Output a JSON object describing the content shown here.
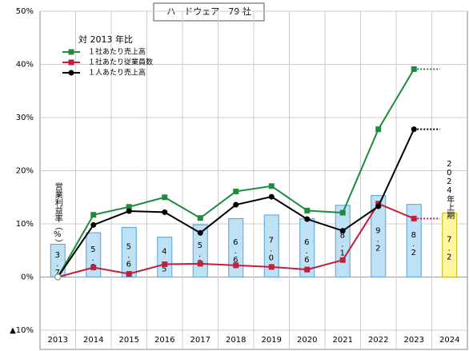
{
  "chart_data": {
    "type": "bar_line",
    "title": "ハードウェア　79 社",
    "categories": [
      "2013",
      "2014",
      "2015",
      "2016",
      "2017",
      "2018",
      "2019",
      "2020",
      "2021",
      "2022",
      "2023",
      "2024"
    ],
    "bar": {
      "name": "営業利益率（%）",
      "axis": "y2",
      "values": [
        3.7,
        5.0,
        5.6,
        4.5,
        5.9,
        6.6,
        7.0,
        6.6,
        8.1,
        9.2,
        8.2,
        7.2
      ],
      "value_labels": [
        "3.7",
        "5.0",
        "5.6",
        "4.5",
        "5.9",
        "6.6",
        "7.0",
        "6.6",
        "8.1",
        "9.2",
        "8.2",
        "7.2"
      ],
      "colors": [
        "#bfe1f6",
        "#bfe1f6",
        "#bfe1f6",
        "#bfe1f6",
        "#bfe1f6",
        "#bfe1f6",
        "#bfe1f6",
        "#bfe1f6",
        "#bfe1f6",
        "#bfe1f6",
        "#bfe1f6",
        "#fff7a0"
      ]
    },
    "legend_title": "対 2013 年比",
    "series": [
      {
        "name": "１社あたり売上高",
        "color": "#1e8c3c",
        "marker": "square",
        "values": [
          0,
          11.7,
          13.2,
          15.0,
          11.1,
          16.1,
          17.1,
          12.5,
          12.1,
          27.8,
          39.1,
          null
        ]
      },
      {
        "name": "１社あたり従業員数",
        "color": "#c0203a",
        "marker": "square",
        "values": [
          0,
          1.8,
          0.6,
          2.4,
          2.5,
          2.2,
          1.9,
          1.4,
          3.2,
          13.8,
          11.0,
          null
        ]
      },
      {
        "name": "１人あたり売上高",
        "color": "#000000",
        "marker": "circle",
        "values": [
          0,
          9.8,
          12.4,
          12.2,
          8.3,
          13.6,
          15.1,
          10.9,
          8.7,
          13.3,
          27.8,
          null
        ]
      }
    ],
    "annotation": "2024年上期",
    "ylim": [
      -10,
      50
    ],
    "yticks": [
      {
        "value": -10,
        "label": "▲10%"
      },
      {
        "value": 0,
        "label": "0%"
      },
      {
        "value": 10,
        "label": "10%"
      },
      {
        "value": 20,
        "label": "20%"
      },
      {
        "value": 30,
        "label": "30%"
      },
      {
        "value": 40,
        "label": "40%"
      },
      {
        "value": 50,
        "label": "50%"
      }
    ],
    "y2lim": [
      -6,
      30
    ],
    "grid": true
  }
}
